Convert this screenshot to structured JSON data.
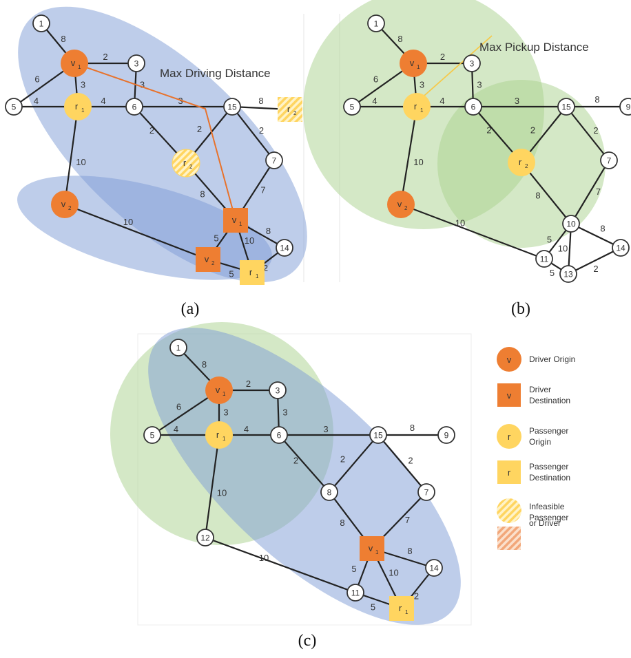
{
  "colors": {
    "driver": "#EE7E32",
    "passenger": "#FFD560",
    "blue_region": "#7E9BD6",
    "green_region": "#A9D18E",
    "route": "#E8722B",
    "pickup_line": "#F6C94A"
  },
  "panels": [
    {
      "id": "a",
      "caption": "(a)",
      "annotation": "Max Driving Distance",
      "nodes": [
        {
          "id": "n1",
          "label": "1"
        },
        {
          "id": "n3",
          "label": "3"
        },
        {
          "id": "n5",
          "label": "5"
        },
        {
          "id": "n6",
          "label": "6"
        },
        {
          "id": "n15",
          "label": "15"
        },
        {
          "id": "n7",
          "label": "7"
        },
        {
          "id": "n14",
          "label": "14"
        }
      ],
      "markers": [
        {
          "id": "v1o",
          "kind": "driver-origin",
          "text": "v",
          "sub": "1"
        },
        {
          "id": "r1o",
          "kind": "passenger-origin",
          "text": "r",
          "sub": "1"
        },
        {
          "id": "v2o",
          "kind": "driver-origin",
          "text": "v",
          "sub": "2"
        },
        {
          "id": "r2o",
          "kind": "infeasible-circle",
          "text": "r",
          "sub": "2"
        },
        {
          "id": "v1d",
          "kind": "driver-destination",
          "text": "v",
          "sub": "1"
        },
        {
          "id": "v2d",
          "kind": "driver-destination",
          "text": "v",
          "sub": "2"
        },
        {
          "id": "r1d",
          "kind": "passenger-destination",
          "text": "r",
          "sub": "1"
        },
        {
          "id": "r2d",
          "kind": "infeasible-square",
          "text": "r",
          "sub": "2"
        }
      ],
      "edges": [
        {
          "a": "n1",
          "b": "v1o",
          "w": "8"
        },
        {
          "a": "v1o",
          "b": "n3",
          "w": "2"
        },
        {
          "a": "v1o",
          "b": "n5",
          "w": "6"
        },
        {
          "a": "v1o",
          "b": "r1o",
          "w": "3"
        },
        {
          "a": "n3",
          "b": "n6",
          "w": "3"
        },
        {
          "a": "n5",
          "b": "r1o",
          "w": "4"
        },
        {
          "a": "r1o",
          "b": "n6",
          "w": "4"
        },
        {
          "a": "n6",
          "b": "n15",
          "w": "3"
        },
        {
          "a": "n15",
          "b": "r2d",
          "w": "8"
        },
        {
          "a": "n6",
          "b": "r2o",
          "w": "2"
        },
        {
          "a": "r2o",
          "b": "n15",
          "w": "2"
        },
        {
          "a": "n15",
          "b": "n7",
          "w": "2"
        },
        {
          "a": "r1o",
          "b": "v2o",
          "w": "10"
        },
        {
          "a": "r2o",
          "b": "v1d",
          "w": "8"
        },
        {
          "a": "n7",
          "b": "v1d",
          "w": "7"
        },
        {
          "a": "v2o",
          "b": "v2d",
          "w": "10"
        },
        {
          "a": "v1d",
          "b": "n14",
          "w": "8"
        },
        {
          "a": "v1d",
          "b": "v2d",
          "w": "5"
        },
        {
          "a": "v1d",
          "b": "r1d",
          "w": "10"
        },
        {
          "a": "v2d",
          "b": "r1d",
          "w": "5"
        },
        {
          "a": "r1d",
          "b": "n14",
          "w": "2"
        }
      ]
    },
    {
      "id": "b",
      "caption": "(b)",
      "annotation": "Max Pickup Distance",
      "nodes": [
        {
          "id": "n1",
          "label": "1"
        },
        {
          "id": "n3",
          "label": "3"
        },
        {
          "id": "n5",
          "label": "5"
        },
        {
          "id": "n6",
          "label": "6"
        },
        {
          "id": "n15",
          "label": "15"
        },
        {
          "id": "n9",
          "label": "9"
        },
        {
          "id": "n7",
          "label": "7"
        },
        {
          "id": "n10",
          "label": "10"
        },
        {
          "id": "n14",
          "label": "14"
        },
        {
          "id": "n11",
          "label": "11"
        },
        {
          "id": "n13",
          "label": "13"
        }
      ],
      "markers": [
        {
          "id": "v1o",
          "kind": "driver-origin",
          "text": "v",
          "sub": "1"
        },
        {
          "id": "r1o",
          "kind": "passenger-origin",
          "text": "r",
          "sub": "1"
        },
        {
          "id": "r2o",
          "kind": "passenger-origin",
          "text": "r",
          "sub": "2"
        },
        {
          "id": "v2o",
          "kind": "driver-origin",
          "text": "v",
          "sub": "2"
        }
      ],
      "edges": [
        {
          "a": "n1",
          "b": "v1o",
          "w": "8"
        },
        {
          "a": "v1o",
          "b": "n3",
          "w": "2"
        },
        {
          "a": "v1o",
          "b": "n5",
          "w": "6"
        },
        {
          "a": "v1o",
          "b": "r1o",
          "w": "3"
        },
        {
          "a": "n3",
          "b": "n6",
          "w": "3"
        },
        {
          "a": "n5",
          "b": "r1o",
          "w": "4"
        },
        {
          "a": "r1o",
          "b": "n6",
          "w": "4"
        },
        {
          "a": "n6",
          "b": "n15",
          "w": "3"
        },
        {
          "a": "n15",
          "b": "n9",
          "w": "8"
        },
        {
          "a": "n6",
          "b": "r2o",
          "w": "2"
        },
        {
          "a": "r2o",
          "b": "n15",
          "w": "2"
        },
        {
          "a": "n15",
          "b": "n7",
          "w": "2"
        },
        {
          "a": "r1o",
          "b": "v2o",
          "w": "10"
        },
        {
          "a": "r2o",
          "b": "n10",
          "w": "8"
        },
        {
          "a": "n7",
          "b": "n10",
          "w": "7"
        },
        {
          "a": "v2o",
          "b": "n11",
          "w": "10"
        },
        {
          "a": "n10",
          "b": "n14",
          "w": "8"
        },
        {
          "a": "n10",
          "b": "n11",
          "w": "5"
        },
        {
          "a": "n10",
          "b": "n13",
          "w": "10"
        },
        {
          "a": "n11",
          "b": "n13",
          "w": "5"
        },
        {
          "a": "n13",
          "b": "n14",
          "w": "2"
        }
      ]
    },
    {
      "id": "c",
      "caption": "(c)",
      "nodes": [
        {
          "id": "n1",
          "label": "1"
        },
        {
          "id": "n3",
          "label": "3"
        },
        {
          "id": "n5",
          "label": "5"
        },
        {
          "id": "n6",
          "label": "6"
        },
        {
          "id": "n15",
          "label": "15"
        },
        {
          "id": "n9",
          "label": "9"
        },
        {
          "id": "n7",
          "label": "7"
        },
        {
          "id": "n8",
          "label": "8"
        },
        {
          "id": "n12",
          "label": "12"
        },
        {
          "id": "n11",
          "label": "11"
        },
        {
          "id": "n14",
          "label": "14"
        }
      ],
      "markers": [
        {
          "id": "v1o",
          "kind": "driver-origin",
          "text": "v",
          "sub": "1"
        },
        {
          "id": "r1o",
          "kind": "passenger-origin",
          "text": "r",
          "sub": "1"
        },
        {
          "id": "v1d",
          "kind": "driver-destination",
          "text": "v",
          "sub": "1"
        },
        {
          "id": "r1d",
          "kind": "passenger-destination",
          "text": "r",
          "sub": "1"
        }
      ],
      "edges": [
        {
          "a": "n1",
          "b": "v1o",
          "w": "8"
        },
        {
          "a": "v1o",
          "b": "n3",
          "w": "2"
        },
        {
          "a": "v1o",
          "b": "n5",
          "w": "6"
        },
        {
          "a": "v1o",
          "b": "r1o",
          "w": "3"
        },
        {
          "a": "n3",
          "b": "n6",
          "w": "3"
        },
        {
          "a": "n5",
          "b": "r1o",
          "w": "4"
        },
        {
          "a": "r1o",
          "b": "n6",
          "w": "4"
        },
        {
          "a": "n6",
          "b": "n15",
          "w": "3"
        },
        {
          "a": "n15",
          "b": "n9",
          "w": "8"
        },
        {
          "a": "n6",
          "b": "n8",
          "w": "2"
        },
        {
          "a": "n8",
          "b": "n15",
          "w": "2"
        },
        {
          "a": "n15",
          "b": "n7",
          "w": "2"
        },
        {
          "a": "r1o",
          "b": "n12",
          "w": "10"
        },
        {
          "a": "n8",
          "b": "v1d",
          "w": "8"
        },
        {
          "a": "n7",
          "b": "v1d",
          "w": "7"
        },
        {
          "a": "n12",
          "b": "n11",
          "w": "10"
        },
        {
          "a": "v1d",
          "b": "n14",
          "w": "8"
        },
        {
          "a": "v1d",
          "b": "n11",
          "w": "5"
        },
        {
          "a": "v1d",
          "b": "r1d",
          "w": "10"
        },
        {
          "a": "n11",
          "b": "r1d",
          "w": "5"
        },
        {
          "a": "r1d",
          "b": "n14",
          "w": "2"
        }
      ]
    }
  ],
  "legend": [
    {
      "kind": "driver-origin",
      "symbol": "v",
      "lines": [
        "Driver Origin"
      ]
    },
    {
      "kind": "driver-destination",
      "symbol": "v",
      "lines": [
        "Driver",
        "Destination"
      ]
    },
    {
      "kind": "passenger-origin",
      "symbol": "r",
      "lines": [
        "Passenger",
        "Origin"
      ]
    },
    {
      "kind": "passenger-destination",
      "symbol": "r",
      "lines": [
        "Passenger",
        "Destination"
      ]
    },
    {
      "kind": "infeasible-passenger",
      "symbol": "",
      "lines": [
        "Infeasible",
        "Passenger"
      ]
    },
    {
      "kind": "infeasible-driver",
      "symbol": "",
      "lines": [
        "or Driver"
      ]
    }
  ]
}
